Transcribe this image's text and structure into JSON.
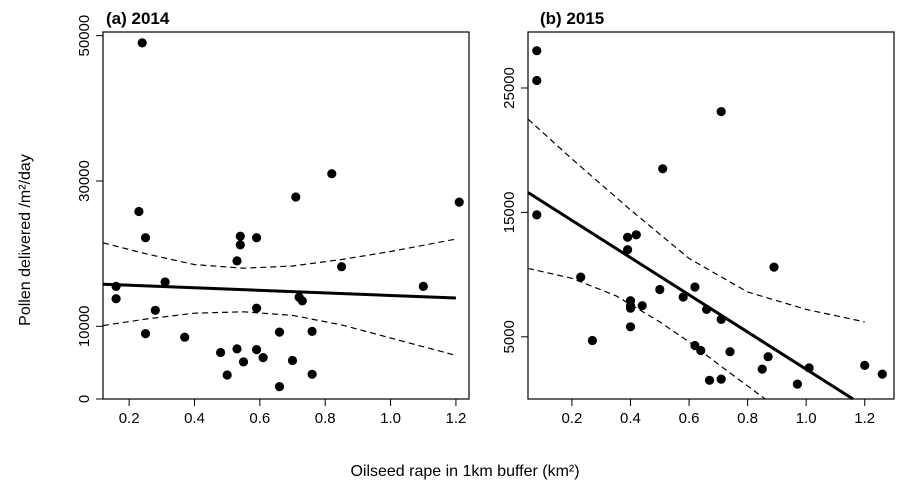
{
  "figure": {
    "xlabel": "Oilseed rape in 1km buffer (km²)",
    "ylabel": "Pollen delivered /m²/day"
  },
  "chart_data": [
    {
      "type": "scatter",
      "title": "(a) 2014",
      "xlabel": "Oilseed rape in 1km buffer (km²)",
      "ylabel": "Pollen delivered /m²/day",
      "xlim": [
        0.12,
        1.24
      ],
      "ylim": [
        0,
        50500
      ],
      "xticks": [
        0.2,
        0.4,
        0.6,
        0.8,
        1.0,
        1.2
      ],
      "xtick_labels": [
        "0.2",
        "0.4",
        "0.6",
        "0.8",
        "1.0",
        "1.2"
      ],
      "yticks": [
        0,
        10000,
        30000,
        50000
      ],
      "ytick_labels": [
        "0",
        "10000",
        "30000",
        "50000"
      ],
      "points": [
        [
          0.24,
          49000
        ],
        [
          0.16,
          15500
        ],
        [
          0.16,
          13800
        ],
        [
          0.23,
          25800
        ],
        [
          0.25,
          22200
        ],
        [
          0.25,
          9000
        ],
        [
          0.28,
          12200
        ],
        [
          0.31,
          16100
        ],
        [
          0.37,
          8500
        ],
        [
          0.48,
          6400
        ],
        [
          0.5,
          3300
        ],
        [
          0.53,
          6900
        ],
        [
          0.53,
          19000
        ],
        [
          0.54,
          21200
        ],
        [
          0.54,
          22400
        ],
        [
          0.55,
          5100
        ],
        [
          0.59,
          12500
        ],
        [
          0.59,
          22200
        ],
        [
          0.59,
          6800
        ],
        [
          0.61,
          5700
        ],
        [
          0.66,
          1700
        ],
        [
          0.66,
          9200
        ],
        [
          0.7,
          5300
        ],
        [
          0.71,
          27800
        ],
        [
          0.72,
          14000
        ],
        [
          0.73,
          13500
        ],
        [
          0.76,
          3400
        ],
        [
          0.76,
          9300
        ],
        [
          0.82,
          31000
        ],
        [
          0.85,
          18200
        ],
        [
          1.1,
          15500
        ],
        [
          1.21,
          27100
        ]
      ],
      "fit": {
        "x": [
          0.12,
          1.2
        ],
        "y": [
          15800,
          13900
        ]
      },
      "ci_upper": {
        "x": [
          0.12,
          0.25,
          0.4,
          0.55,
          0.7,
          0.85,
          1.0,
          1.2
        ],
        "y": [
          21500,
          20000,
          18500,
          18000,
          18300,
          19200,
          20300,
          22000
        ]
      },
      "ci_lower": {
        "x": [
          0.12,
          0.25,
          0.4,
          0.55,
          0.7,
          0.85,
          1.0,
          1.2
        ],
        "y": [
          10100,
          11000,
          11800,
          12000,
          11500,
          10200,
          8400,
          6000
        ]
      },
      "grid": false
    },
    {
      "type": "scatter",
      "title": "(b) 2015",
      "xlabel": "Oilseed rape in 1km buffer (km²)",
      "ylabel": "Pollen delivered /m²/day",
      "xlim": [
        0.05,
        1.3
      ],
      "ylim": [
        0,
        29500
      ],
      "xticks": [
        0.2,
        0.4,
        0.6,
        0.8,
        1.0,
        1.2
      ],
      "xtick_labels": [
        "0.2",
        "0.4",
        "0.6",
        "0.8",
        "1.0",
        "1.2"
      ],
      "yticks": [
        5000,
        15000,
        25000
      ],
      "ytick_labels": [
        "5000",
        "15000",
        "25000"
      ],
      "points": [
        [
          0.08,
          28000
        ],
        [
          0.08,
          25600
        ],
        [
          0.08,
          14800
        ],
        [
          0.23,
          9800
        ],
        [
          0.27,
          4700
        ],
        [
          0.39,
          13000
        ],
        [
          0.39,
          12000
        ],
        [
          0.4,
          7500
        ],
        [
          0.4,
          7300
        ],
        [
          0.4,
          5800
        ],
        [
          0.4,
          7900
        ],
        [
          0.42,
          13200
        ],
        [
          0.44,
          7500
        ],
        [
          0.5,
          8800
        ],
        [
          0.51,
          18500
        ],
        [
          0.58,
          8200
        ],
        [
          0.62,
          9000
        ],
        [
          0.62,
          4300
        ],
        [
          0.64,
          3900
        ],
        [
          0.66,
          7200
        ],
        [
          0.67,
          1500
        ],
        [
          0.71,
          6400
        ],
        [
          0.71,
          23100
        ],
        [
          0.71,
          1600
        ],
        [
          0.74,
          3800
        ],
        [
          0.85,
          2400
        ],
        [
          0.87,
          3400
        ],
        [
          0.89,
          10600
        ],
        [
          0.97,
          1200
        ],
        [
          1.01,
          2500
        ],
        [
          1.2,
          2700
        ],
        [
          1.26,
          2000
        ]
      ],
      "fit": {
        "x": [
          0.05,
          1.16
        ],
        "y": [
          16600,
          0
        ]
      },
      "ci_upper": {
        "x": [
          0.05,
          0.2,
          0.4,
          0.6,
          0.8,
          1.0,
          1.2
        ],
        "y": [
          22500,
          19300,
          15200,
          11300,
          8600,
          7200,
          6200
        ]
      },
      "ci_lower": {
        "x": [
          0.05,
          0.2,
          0.35,
          0.5,
          0.6,
          0.7,
          0.78,
          0.86
        ],
        "y": [
          10500,
          9700,
          8300,
          6200,
          4600,
          2800,
          1400,
          0
        ]
      },
      "grid": false
    }
  ]
}
